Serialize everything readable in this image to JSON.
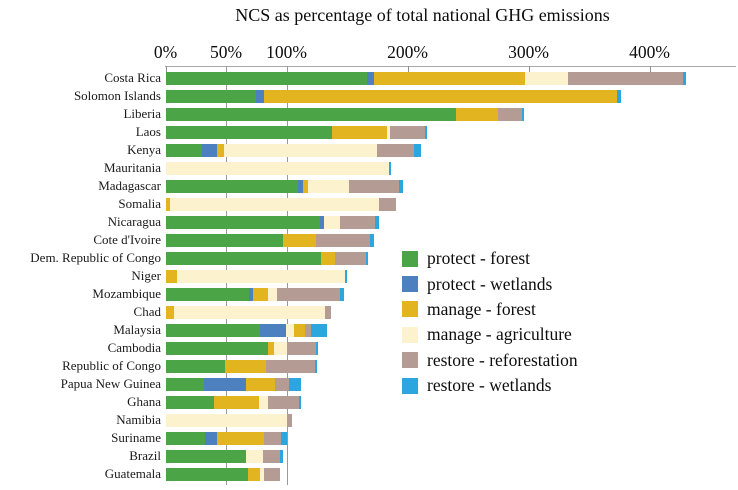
{
  "title": "NCS as percentage of total national GHG emissions",
  "chart_data": {
    "type": "bar",
    "orientation": "horizontal-stacked",
    "title": "NCS as percentage of total national GHG emissions",
    "unit": "percent of national GHG emissions",
    "x_axis": {
      "position": "top",
      "tick_labels": [
        "0%",
        "50%",
        "100%",
        "200%",
        "300%",
        "400%"
      ],
      "tick_values": [
        0,
        50,
        100,
        200,
        300,
        400
      ],
      "gridline_values": [
        50,
        100
      ],
      "axis_max": 445
    },
    "series": [
      {
        "key": "protect_forest",
        "label": "protect - forest",
        "color": "#4BA546"
      },
      {
        "key": "protect_wetlands",
        "label": "protect - wetlands",
        "color": "#4C80BF"
      },
      {
        "key": "manage_forest",
        "label": "manage - forest",
        "color": "#E2B420"
      },
      {
        "key": "manage_agriculture",
        "label": "manage - agriculture",
        "color": "#FCF3CE"
      },
      {
        "key": "restore_reforestation",
        "label": "restore - reforestation",
        "color": "#B49B93"
      },
      {
        "key": "restore_wetlands",
        "label": "restore - wetlands",
        "color": "#2BA6DE"
      }
    ],
    "legend": {
      "position": "middle-right"
    },
    "countries": [
      {
        "name": "Costa Rica",
        "segments": [
          [
            "protect_forest",
            166
          ],
          [
            "protect_wetlands",
            6
          ],
          [
            "manage_forest",
            125
          ],
          [
            "manage_agriculture",
            35
          ],
          [
            "restore_reforestation",
            95
          ],
          [
            "restore_wetlands",
            3
          ]
        ]
      },
      {
        "name": "Solomon Islands",
        "segments": [
          [
            "protect_forest",
            74
          ],
          [
            "protect_wetlands",
            7
          ],
          [
            "manage_forest",
            292
          ],
          [
            "restore_wetlands",
            3
          ]
        ]
      },
      {
        "name": "Liberia",
        "segments": [
          [
            "protect_forest",
            240
          ],
          [
            "manage_forest",
            34
          ],
          [
            "restore_reforestation",
            20
          ],
          [
            "restore_wetlands",
            2
          ]
        ]
      },
      {
        "name": "Laos",
        "segments": [
          [
            "protect_forest",
            137
          ],
          [
            "manage_forest",
            46
          ],
          [
            "manage_agriculture",
            2
          ],
          [
            "restore_reforestation",
            29
          ],
          [
            "restore_wetlands",
            2
          ]
        ]
      },
      {
        "name": "Kenya",
        "segments": [
          [
            "protect_forest",
            30
          ],
          [
            "protect_wetlands",
            12
          ],
          [
            "manage_forest",
            6
          ],
          [
            "manage_agriculture",
            126
          ],
          [
            "restore_reforestation",
            31
          ],
          [
            "restore_wetlands",
            6
          ]
        ]
      },
      {
        "name": "Mauritania",
        "segments": [
          [
            "manage_agriculture",
            184
          ],
          [
            "restore_wetlands",
            2
          ]
        ]
      },
      {
        "name": "Madagascar",
        "segments": [
          [
            "protect_forest",
            109
          ],
          [
            "protect_wetlands",
            4
          ],
          [
            "manage_forest",
            4
          ],
          [
            "manage_agriculture",
            34
          ],
          [
            "restore_reforestation",
            42
          ],
          [
            "restore_wetlands",
            3
          ]
        ]
      },
      {
        "name": "Somalia",
        "segments": [
          [
            "manage_forest",
            3
          ],
          [
            "manage_agriculture",
            173
          ],
          [
            "restore_reforestation",
            14
          ]
        ]
      },
      {
        "name": "Nicaragua",
        "segments": [
          [
            "protect_forest",
            127
          ],
          [
            "protect_wetlands",
            4
          ],
          [
            "manage_agriculture",
            13
          ],
          [
            "restore_reforestation",
            29
          ],
          [
            "restore_wetlands",
            3
          ]
        ]
      },
      {
        "name": "Cote d'Ivoire",
        "segments": [
          [
            "protect_forest",
            97
          ],
          [
            "manage_forest",
            27
          ],
          [
            "restore_reforestation",
            45
          ],
          [
            "restore_wetlands",
            3
          ]
        ]
      },
      {
        "name": "Dem. Republic of Congo",
        "segments": [
          [
            "protect_forest",
            128
          ],
          [
            "manage_forest",
            12
          ],
          [
            "restore_reforestation",
            25
          ],
          [
            "restore_wetlands",
            2
          ]
        ]
      },
      {
        "name": "Niger",
        "segments": [
          [
            "manage_forest",
            9
          ],
          [
            "manage_agriculture",
            139
          ],
          [
            "restore_wetlands",
            2
          ]
        ]
      },
      {
        "name": "Mozambique",
        "segments": [
          [
            "protect_forest",
            69
          ],
          [
            "protect_wetlands",
            3
          ],
          [
            "manage_forest",
            12
          ],
          [
            "manage_agriculture",
            8
          ],
          [
            "restore_reforestation",
            52
          ],
          [
            "restore_wetlands",
            3
          ]
        ]
      },
      {
        "name": "Chad",
        "segments": [
          [
            "manage_forest",
            7
          ],
          [
            "manage_agriculture",
            124
          ],
          [
            "restore_reforestation",
            5
          ]
        ]
      },
      {
        "name": "Malaysia",
        "segments": [
          [
            "protect_forest",
            78
          ],
          [
            "protect_wetlands",
            21
          ],
          [
            "manage_agriculture",
            7
          ],
          [
            "manage_forest",
            9
          ],
          [
            "restore_reforestation",
            5
          ],
          [
            "restore_wetlands",
            13
          ]
        ]
      },
      {
        "name": "Cambodia",
        "segments": [
          [
            "protect_forest",
            84
          ],
          [
            "manage_forest",
            5
          ],
          [
            "manage_agriculture",
            11
          ],
          [
            "restore_reforestation",
            24
          ],
          [
            "restore_wetlands",
            2
          ]
        ]
      },
      {
        "name": "Republic of Congo",
        "segments": [
          [
            "protect_forest",
            49
          ],
          [
            "manage_forest",
            34
          ],
          [
            "restore_reforestation",
            40
          ],
          [
            "restore_wetlands",
            2
          ]
        ]
      },
      {
        "name": "Papua New Guinea",
        "segments": [
          [
            "protect_forest",
            31
          ],
          [
            "protect_wetlands",
            35
          ],
          [
            "manage_forest",
            24
          ],
          [
            "restore_reforestation",
            12
          ],
          [
            "restore_wetlands",
            10
          ]
        ]
      },
      {
        "name": "Ghana",
        "segments": [
          [
            "protect_forest",
            40
          ],
          [
            "manage_forest",
            37
          ],
          [
            "manage_agriculture",
            7
          ],
          [
            "restore_reforestation",
            26
          ],
          [
            "restore_wetlands",
            2
          ]
        ]
      },
      {
        "name": "Namibia",
        "segments": [
          [
            "manage_agriculture",
            100
          ],
          [
            "restore_reforestation",
            4
          ]
        ]
      },
      {
        "name": "Suriname",
        "segments": [
          [
            "protect_forest",
            32
          ],
          [
            "protect_wetlands",
            10
          ],
          [
            "manage_forest",
            39
          ],
          [
            "restore_reforestation",
            14
          ],
          [
            "restore_wetlands",
            5
          ]
        ]
      },
      {
        "name": "Brazil",
        "segments": [
          [
            "protect_forest",
            66
          ],
          [
            "manage_agriculture",
            14
          ],
          [
            "restore_reforestation",
            14
          ],
          [
            "restore_wetlands",
            3
          ]
        ]
      },
      {
        "name": "Guatemala",
        "segments": [
          [
            "protect_forest",
            68
          ],
          [
            "manage_forest",
            10
          ],
          [
            "manage_agriculture",
            3
          ],
          [
            "restore_reforestation",
            13
          ]
        ]
      }
    ]
  }
}
